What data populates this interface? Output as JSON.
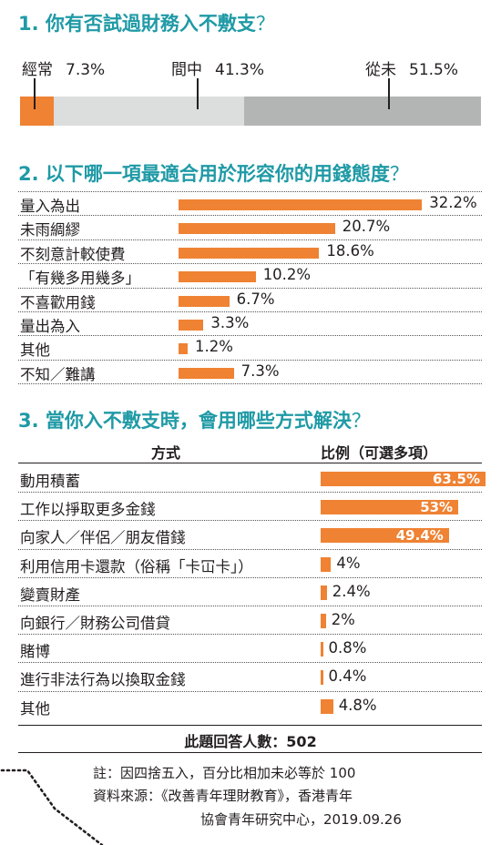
{
  "q1": {
    "title": "1. 你有否試過財務入不敷支",
    "qmark": "？",
    "chart_data": {
      "type": "bar",
      "orientation": "stacked-horizontal",
      "categories": [
        "經常",
        "間中",
        "從未"
      ],
      "values": [
        7.3,
        41.3,
        51.5
      ],
      "value_labels": [
        "7.3%",
        "41.3%",
        "51.5%"
      ],
      "colors": [
        "#ef8233",
        "#dcdddd",
        "#b3b4b4"
      ]
    }
  },
  "q2": {
    "title": "2. 以下哪一項最適合用於形容你的用錢態度",
    "qmark": "？",
    "chart_data": {
      "type": "bar",
      "orientation": "horizontal",
      "categories": [
        "量入為出",
        "未雨綢繆",
        "不刻意計較使費",
        "「有幾多用幾多」",
        "不喜歡用錢",
        "量出為入",
        "其他",
        "不知／難講"
      ],
      "values": [
        32.2,
        20.7,
        18.6,
        10.2,
        6.7,
        3.3,
        1.2,
        7.3
      ],
      "value_labels": [
        "32.2%",
        "20.7%",
        "18.6%",
        "10.2%",
        "6.7%",
        "3.3%",
        "1.2%",
        "7.3%"
      ],
      "color": "#ef8233"
    }
  },
  "q3": {
    "title": "3. 當你入不敷支時，會用哪些方式解決",
    "qmark": "？",
    "header_method": "方式",
    "header_ratio": "比例（可選多項）",
    "chart_data": {
      "type": "bar",
      "orientation": "horizontal",
      "categories": [
        "動用積蓄",
        "工作以掙取更多金錢",
        "向家人／伴侶／朋友借錢",
        "利用信用卡還款（俗稱「卡冚卡」）",
        "變賣財產",
        "向銀行／財務公司借貸",
        "賭博",
        "進行非法行為以換取金錢",
        "其他"
      ],
      "values": [
        63.5,
        53,
        49.4,
        4,
        2.4,
        2,
        0.8,
        0.4,
        4.8
      ],
      "value_labels": [
        "63.5%",
        "53%",
        "49.4%",
        "4%",
        "2.4%",
        "2%",
        "0.8%",
        "0.4%",
        "4.8%"
      ],
      "color": "#ef8233"
    },
    "respondents": "此題回答人數：502"
  },
  "footnote": {
    "note": "註：因四捨五入，百分比相加未必等於 100",
    "source_line1": "資料來源：《改善青年理財教育》，香港青年",
    "source_line2": "協會青年研究中心，2019.09.26"
  }
}
